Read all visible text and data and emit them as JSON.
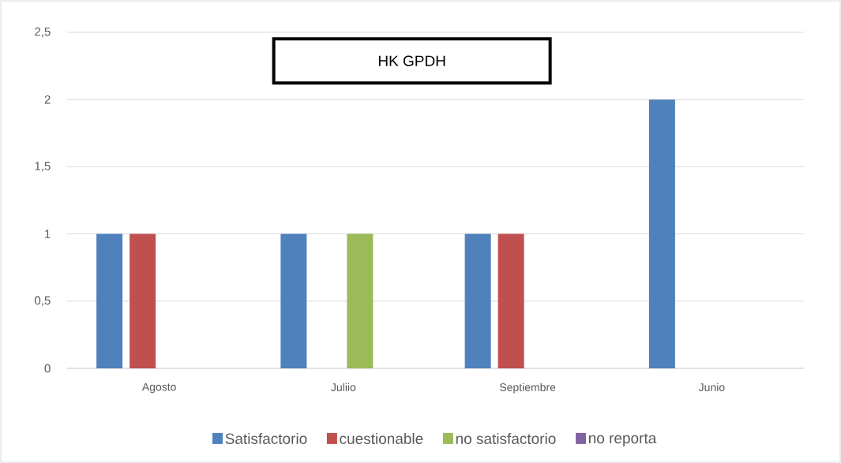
{
  "chart_data": {
    "type": "bar",
    "title": "HK GPDH",
    "categories": [
      "Agosto",
      "Juliio",
      "Septiembre",
      "Junio"
    ],
    "series": [
      {
        "name": "Satisfactorio",
        "color": "#4f81bd",
        "values": [
          1,
          1,
          1,
          2
        ]
      },
      {
        "name": "cuestionable",
        "color": "#c0504d",
        "values": [
          1,
          0,
          1,
          0
        ]
      },
      {
        "name": "no satisfactorio",
        "color": "#9bbb59",
        "values": [
          0,
          1,
          0,
          0
        ]
      },
      {
        "name": "no reporta",
        "color": "#8064a2",
        "values": [
          0,
          0,
          0,
          0
        ]
      }
    ],
    "ylim": [
      0,
      2.5
    ],
    "yticks": [
      0,
      {
        "value": 0.5,
        "label": "0,5"
      },
      1,
      {
        "value": 1.5,
        "label": "1,5"
      },
      2,
      {
        "value": 2.5,
        "label": "2,5"
      }
    ],
    "grid": "y",
    "legend": "bottom"
  }
}
